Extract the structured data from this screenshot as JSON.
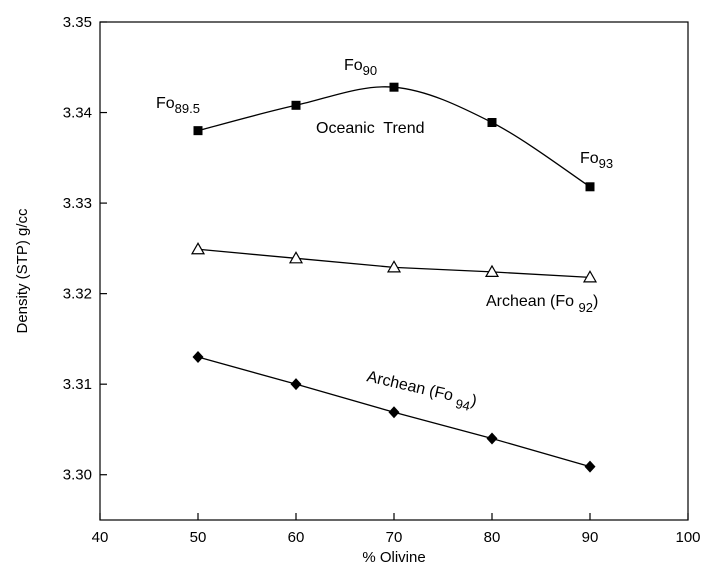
{
  "chart_data": {
    "type": "line",
    "title": "",
    "xlabel": "% Olivine",
    "ylabel": "Density (STP) g/cc",
    "xlim": [
      40,
      100
    ],
    "ylim": [
      3.295,
      3.35
    ],
    "x_ticks": [
      "40",
      "50",
      "60",
      "70",
      "80",
      "90",
      "100"
    ],
    "y_ticks": [
      "3.30",
      "3.31",
      "3.32",
      "3.33",
      "3.34",
      "3.35"
    ],
    "grid": false,
    "series": [
      {
        "key": "oceanic",
        "marker": "square",
        "x": [
          50,
          60,
          70,
          80,
          90
        ],
        "y": [
          3.338,
          3.3408,
          3.3428,
          3.3389,
          3.3318
        ]
      },
      {
        "key": "archean92",
        "marker": "triangle",
        "x": [
          50,
          60,
          70,
          80,
          90
        ],
        "y": [
          3.3249,
          3.3239,
          3.3229,
          3.3224,
          3.3218
        ]
      },
      {
        "key": "archean94",
        "marker": "diamond",
        "x": [
          50,
          60,
          70,
          80,
          90
        ],
        "y": [
          3.313,
          3.31,
          3.3069,
          3.304,
          3.3009
        ]
      }
    ],
    "annotations": {
      "fo895": {
        "main": "Fo",
        "sub": "89.5"
      },
      "fo90": {
        "main": "Fo",
        "sub": "90"
      },
      "fo93": {
        "main": "Fo",
        "sub": "93"
      },
      "oceanic": {
        "text": "Oceanic  Trend"
      },
      "archean92": {
        "main": "Archean (Fo ",
        "sub": "92",
        "close": ")"
      },
      "archean94": {
        "main": "Archean (Fo ",
        "sub": "94",
        "close": ")"
      }
    }
  }
}
